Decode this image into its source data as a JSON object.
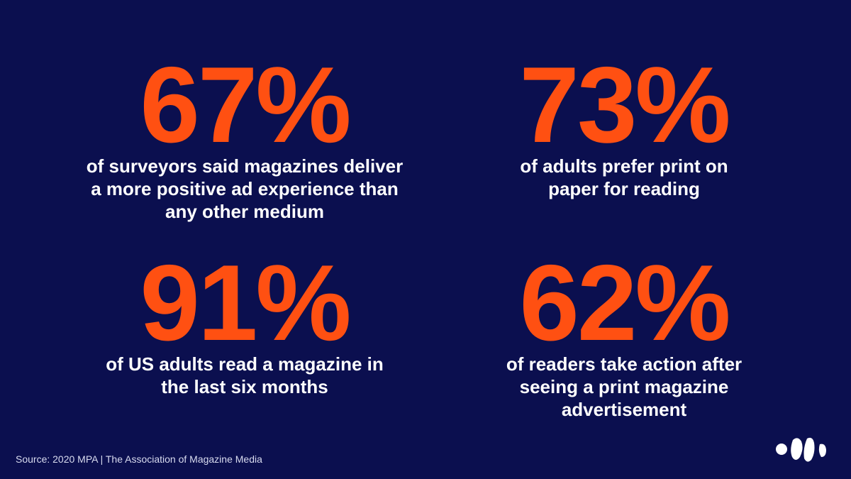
{
  "stats": [
    {
      "value": "67%",
      "description": [
        "of surveyors said magazines deliver",
        "a more positive ad experience than",
        "any other medium"
      ]
    },
    {
      "value": "73%",
      "description": [
        "of adults prefer print on",
        "paper for reading"
      ]
    },
    {
      "value": "91%",
      "description": [
        "of US adults read a magazine in",
        "the last six months"
      ]
    },
    {
      "value": "62%",
      "description": [
        "of readers take action after",
        "seeing a print magazine",
        "advertisement"
      ]
    }
  ],
  "source": "Source: 2020 MPA | The Association of Magazine Media"
}
